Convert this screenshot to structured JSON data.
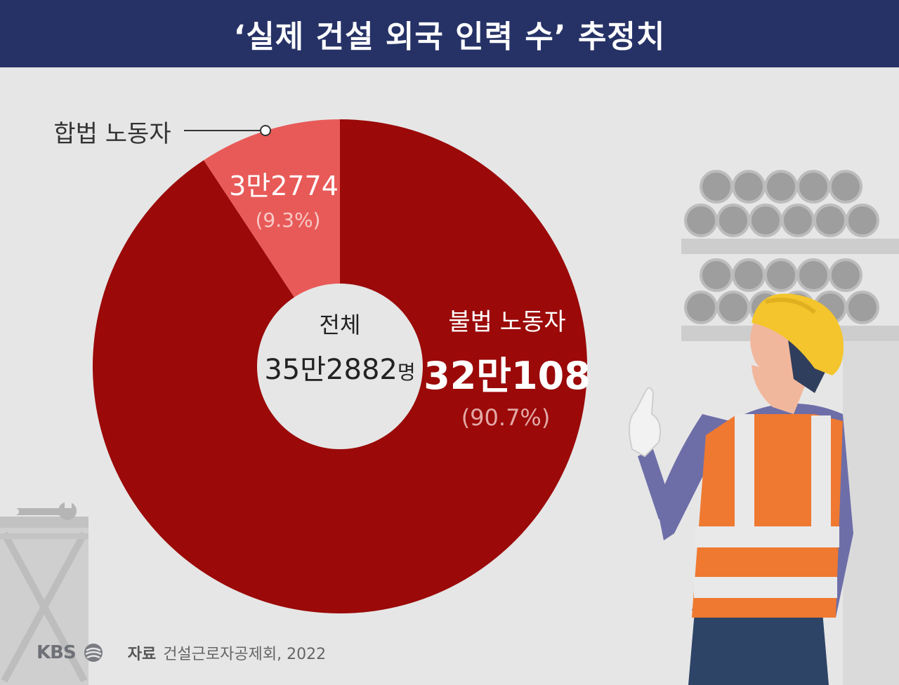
{
  "title": "‘실제 건설 외국 인력 수’ 추정치",
  "chart_data": {
    "type": "pie",
    "center_label": "전체",
    "total_label": "35만2882",
    "total_unit": "명",
    "total": 352882,
    "slices": [
      {
        "name": "불법 노동자",
        "value_label": "32만108",
        "value": 320108,
        "percent_label": "(90.7%)",
        "percent": 90.7
      },
      {
        "name": "합법 노동자",
        "value_label": "3만2774",
        "value": 32774,
        "percent_label": "(9.3%)",
        "percent": 9.3
      }
    ]
  },
  "colors": {
    "illegal": "#9b0909",
    "legal": "#e85a58",
    "header_bg": "#263266",
    "background": "#e6e6e6"
  },
  "footer": {
    "logo": "KBS",
    "source_label": "자료",
    "source": "건설근로자공제회, 2022"
  }
}
